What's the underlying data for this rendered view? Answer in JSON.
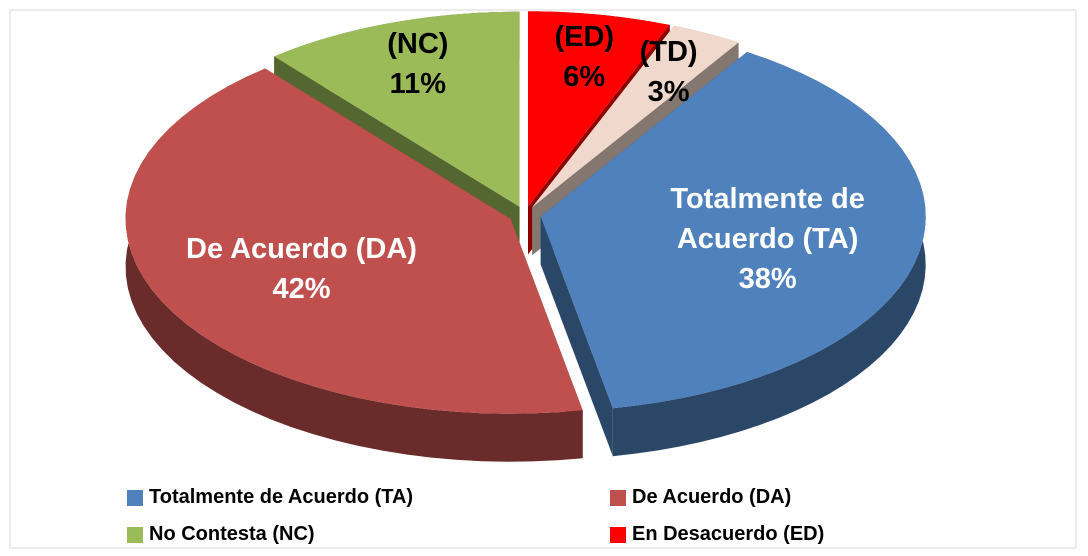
{
  "chart_data": {
    "type": "pie",
    "categories": [
      "Totalmente de Acuerdo (TA)",
      "De Acuerdo (DA)",
      "No Contesta (NC)",
      "En Desacuerdo (ED)",
      null
    ],
    "slice_labels": [
      "Totalmente de Acuerdo (TA)",
      "De Acuerdo (DA)",
      "(NC)",
      "(ED)",
      "(TD)"
    ],
    "values": [
      38,
      42,
      11,
      6,
      3
    ],
    "value_labels": [
      "38%",
      "42%",
      "11%",
      "6%",
      "3%"
    ],
    "colors": [
      "#4f81bd",
      "#c0504d",
      "#9bbb59",
      "#ff0000",
      "#f0d8cc"
    ],
    "legend": "bottom"
  }
}
